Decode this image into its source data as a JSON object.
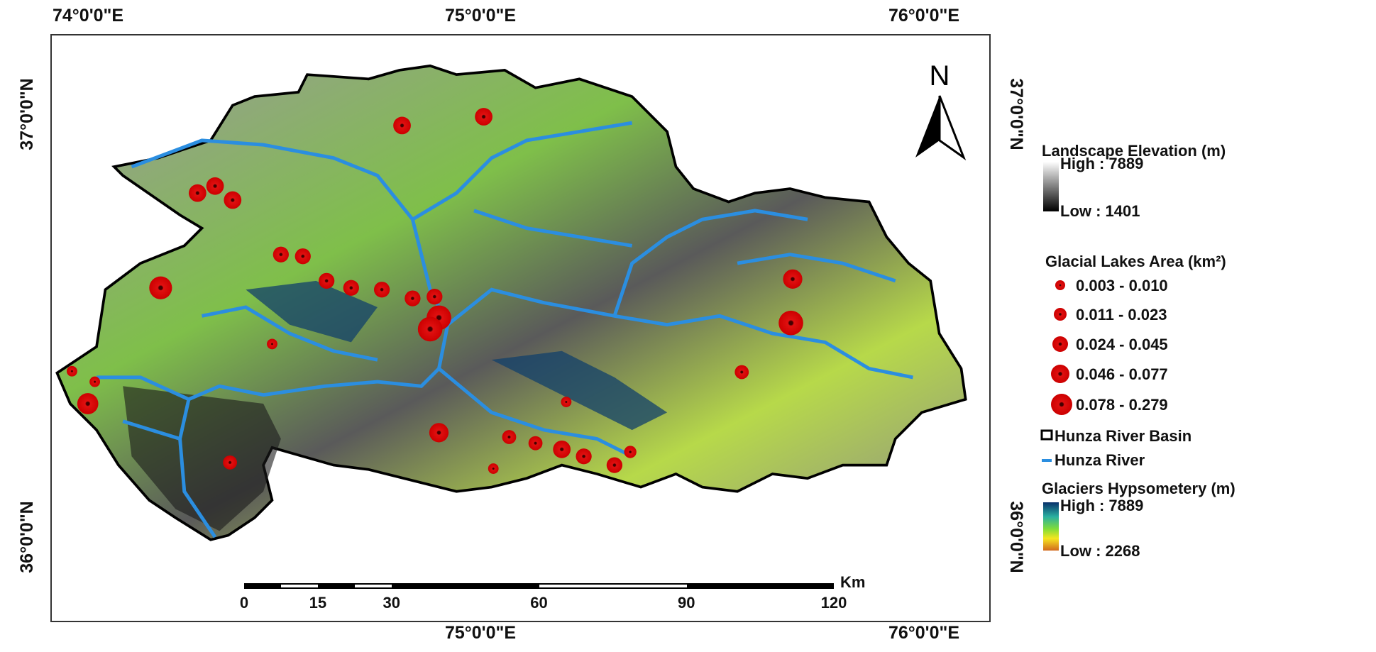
{
  "coordinates": {
    "top": [
      "74°0'0\"E",
      "75°0'0\"E",
      "76°0'0\"E"
    ],
    "bottom": [
      "75°0'0\"E",
      "76°0'0\"E"
    ],
    "left": [
      "37°0'0\"N",
      "36°0'0\"N"
    ],
    "right": [
      "37°0'0\"N",
      "36°0'0\"N"
    ]
  },
  "north": "N",
  "legend": {
    "elevation": {
      "title": "Landscape Elevation (m)",
      "high": "High : 7889",
      "low": "Low : 1401"
    },
    "lakes": {
      "title": "Glacial Lakes Area (km²)",
      "classes": [
        "0.003 - 0.010",
        "0.011 - 0.023",
        "0.024 - 0.045",
        "0.046 - 0.077",
        "0.078 - 0.279"
      ]
    },
    "basin": "Hunza River Basin",
    "river": "Hunza River",
    "glaciers": {
      "title": "Glaciers Hypsometery (m)",
      "high": "High : 7889",
      "low": "Low : 2268"
    }
  },
  "scale_bar": {
    "unit": "Km",
    "ticks": [
      0,
      15,
      30,
      60,
      90,
      120
    ]
  }
}
